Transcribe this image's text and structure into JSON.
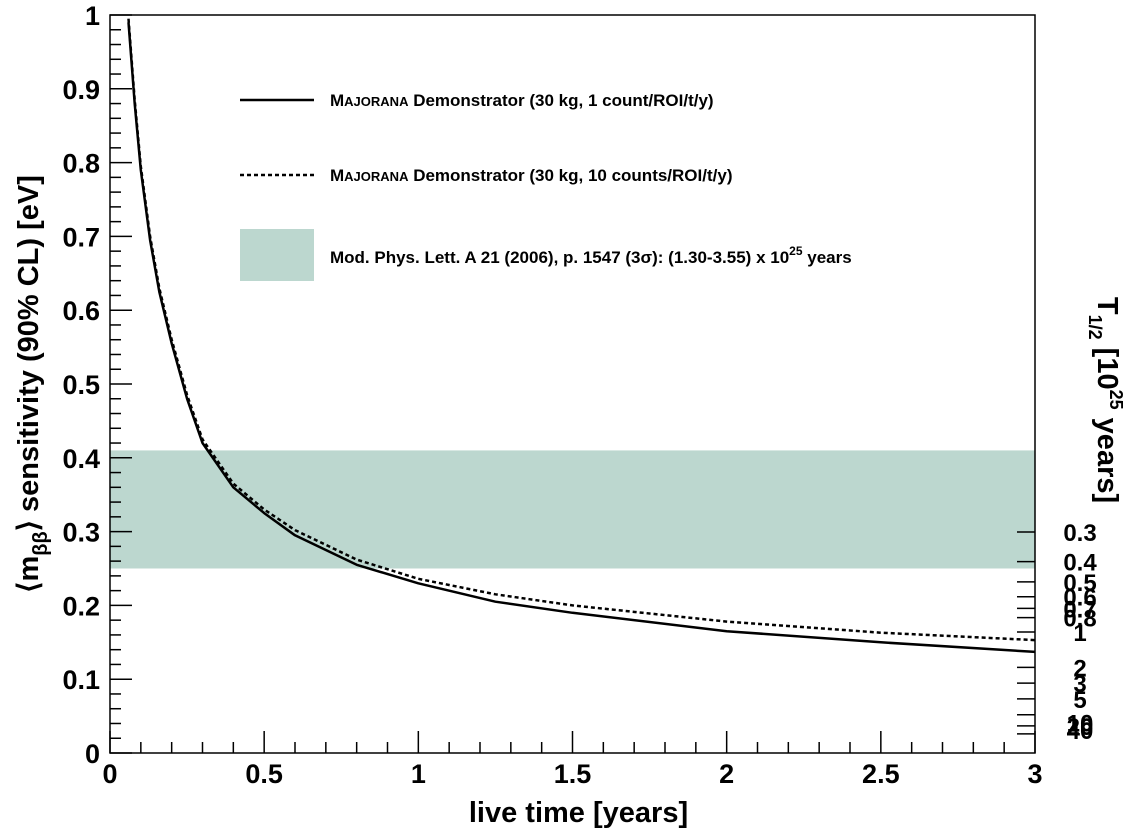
{
  "chart_data": {
    "type": "line",
    "x_range": [
      0,
      3
    ],
    "y_range": [
      0,
      1
    ],
    "xlabel": "live time [years]",
    "ylabel": {
      "open": "⟨m",
      "sub": "ββ",
      "close": "⟩ sensitivity (90% CL) [eV]"
    },
    "right_axis": {
      "label_prefix": "T",
      "label_sub": "1/2",
      "label_mid": " [10",
      "label_sup": "25",
      "label_suffix": " years]",
      "ticks": [
        "0.3",
        "0.4",
        "0.5",
        "0.6",
        "0.7",
        "0.8",
        "1",
        "2",
        "3",
        "5",
        "10",
        "20",
        "40"
      ]
    },
    "x_ticks": [
      "0",
      "0.5",
      "1",
      "1.5",
      "2",
      "2.5",
      "3"
    ],
    "y_ticks": [
      "0",
      "0.1",
      "0.2",
      "0.3",
      "0.4",
      "0.5",
      "0.6",
      "0.7",
      "0.8",
      "0.9",
      "1"
    ],
    "band": {
      "y_low": 0.25,
      "y_high": 0.41,
      "color": "#bcd7cf",
      "legend": {
        "text_before_sup": "Mod. Phys. Lett. A 21 (2006), p. 1547 (3σ): (1.30-3.55) x 10",
        "sup": "25",
        "text_after_sup": " years"
      }
    },
    "series": [
      {
        "legend_sc_lead": "M",
        "legend_sc_rest": "AJORANA",
        "legend_rest": " Demonstrator (30 kg, 1 count/ROI/t/y)",
        "style": "solid",
        "color": "#000000",
        "x": [
          0.06,
          0.08,
          0.1,
          0.13,
          0.16,
          0.2,
          0.25,
          0.3,
          0.4,
          0.5,
          0.6,
          0.8,
          1.0,
          1.25,
          1.5,
          2.0,
          2.5,
          3.0
        ],
        "y": [
          0.99,
          0.88,
          0.79,
          0.695,
          0.625,
          0.555,
          0.48,
          0.42,
          0.36,
          0.325,
          0.295,
          0.255,
          0.23,
          0.205,
          0.19,
          0.165,
          0.15,
          0.137
        ]
      },
      {
        "legend_sc_lead": "M",
        "legend_sc_rest": "AJORANA",
        "legend_rest": " Demonstrator (30 kg, 10 counts/ROI/t/y)",
        "style": "dotted",
        "color": "#000000",
        "x": [
          0.06,
          0.08,
          0.1,
          0.13,
          0.16,
          0.2,
          0.25,
          0.3,
          0.4,
          0.5,
          0.6,
          0.8,
          1.0,
          1.25,
          1.5,
          2.0,
          2.5,
          3.0
        ],
        "y": [
          0.995,
          0.885,
          0.795,
          0.7,
          0.63,
          0.56,
          0.485,
          0.425,
          0.365,
          0.33,
          0.302,
          0.262,
          0.236,
          0.215,
          0.2,
          0.178,
          0.163,
          0.153
        ]
      }
    ]
  }
}
